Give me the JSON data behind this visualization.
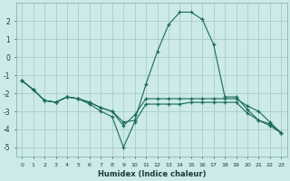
{
  "xlabel": "Humidex (Indice chaleur)",
  "bg_color": "#cceae8",
  "grid_color": "#aacccc",
  "line_color": "#1a6b5a",
  "series": [
    {
      "x": [
        0,
        1,
        2,
        3,
        4,
        5,
        6,
        7,
        8,
        9,
        10,
        11,
        12,
        13,
        14,
        15,
        16,
        17,
        18,
        19,
        20,
        21,
        22,
        23
      ],
      "y": [
        -1.3,
        -1.8,
        -2.4,
        -2.5,
        -2.2,
        -2.3,
        -2.5,
        -2.8,
        -3.0,
        -3.6,
        -3.5,
        -1.5,
        0.3,
        1.8,
        2.5,
        2.5,
        2.1,
        0.7,
        -2.2,
        -2.2,
        -2.9,
        -3.5,
        -3.7,
        -4.2
      ]
    },
    {
      "x": [
        0,
        1,
        2,
        3,
        4,
        5,
        6,
        7,
        8,
        9,
        10,
        11,
        12,
        13,
        14,
        15,
        16,
        17,
        18,
        19,
        20,
        21,
        22,
        23
      ],
      "y": [
        -1.3,
        -1.8,
        -2.4,
        -2.5,
        -2.2,
        -2.3,
        -2.5,
        -2.8,
        -3.0,
        -3.8,
        -3.2,
        -2.3,
        -2.3,
        -2.3,
        -2.3,
        -2.3,
        -2.3,
        -2.3,
        -2.3,
        -2.3,
        -2.7,
        -3.0,
        -3.6,
        -4.2
      ]
    },
    {
      "x": [
        0,
        1,
        2,
        3,
        4,
        5,
        6,
        7,
        8,
        9,
        10,
        11,
        12,
        13,
        14,
        15,
        16,
        17,
        18,
        19,
        20,
        21,
        22,
        23
      ],
      "y": [
        -1.3,
        -1.8,
        -2.4,
        -2.5,
        -2.2,
        -2.3,
        -2.6,
        -3.0,
        -3.3,
        -5.0,
        -3.6,
        -2.6,
        -2.6,
        -2.6,
        -2.6,
        -2.5,
        -2.5,
        -2.5,
        -2.5,
        -2.5,
        -3.1,
        -3.5,
        -3.8,
        -4.2
      ]
    }
  ],
  "xlim": [
    -0.5,
    23.5
  ],
  "ylim": [
    -5.5,
    3.0
  ],
  "yticks": [
    -5,
    -4,
    -3,
    -2,
    -1,
    0,
    1,
    2
  ],
  "xticks": [
    0,
    1,
    2,
    3,
    4,
    5,
    6,
    7,
    8,
    9,
    10,
    11,
    12,
    13,
    14,
    15,
    16,
    17,
    18,
    19,
    20,
    21,
    22,
    23
  ],
  "figsize": [
    3.2,
    2.0
  ],
  "dpi": 100
}
